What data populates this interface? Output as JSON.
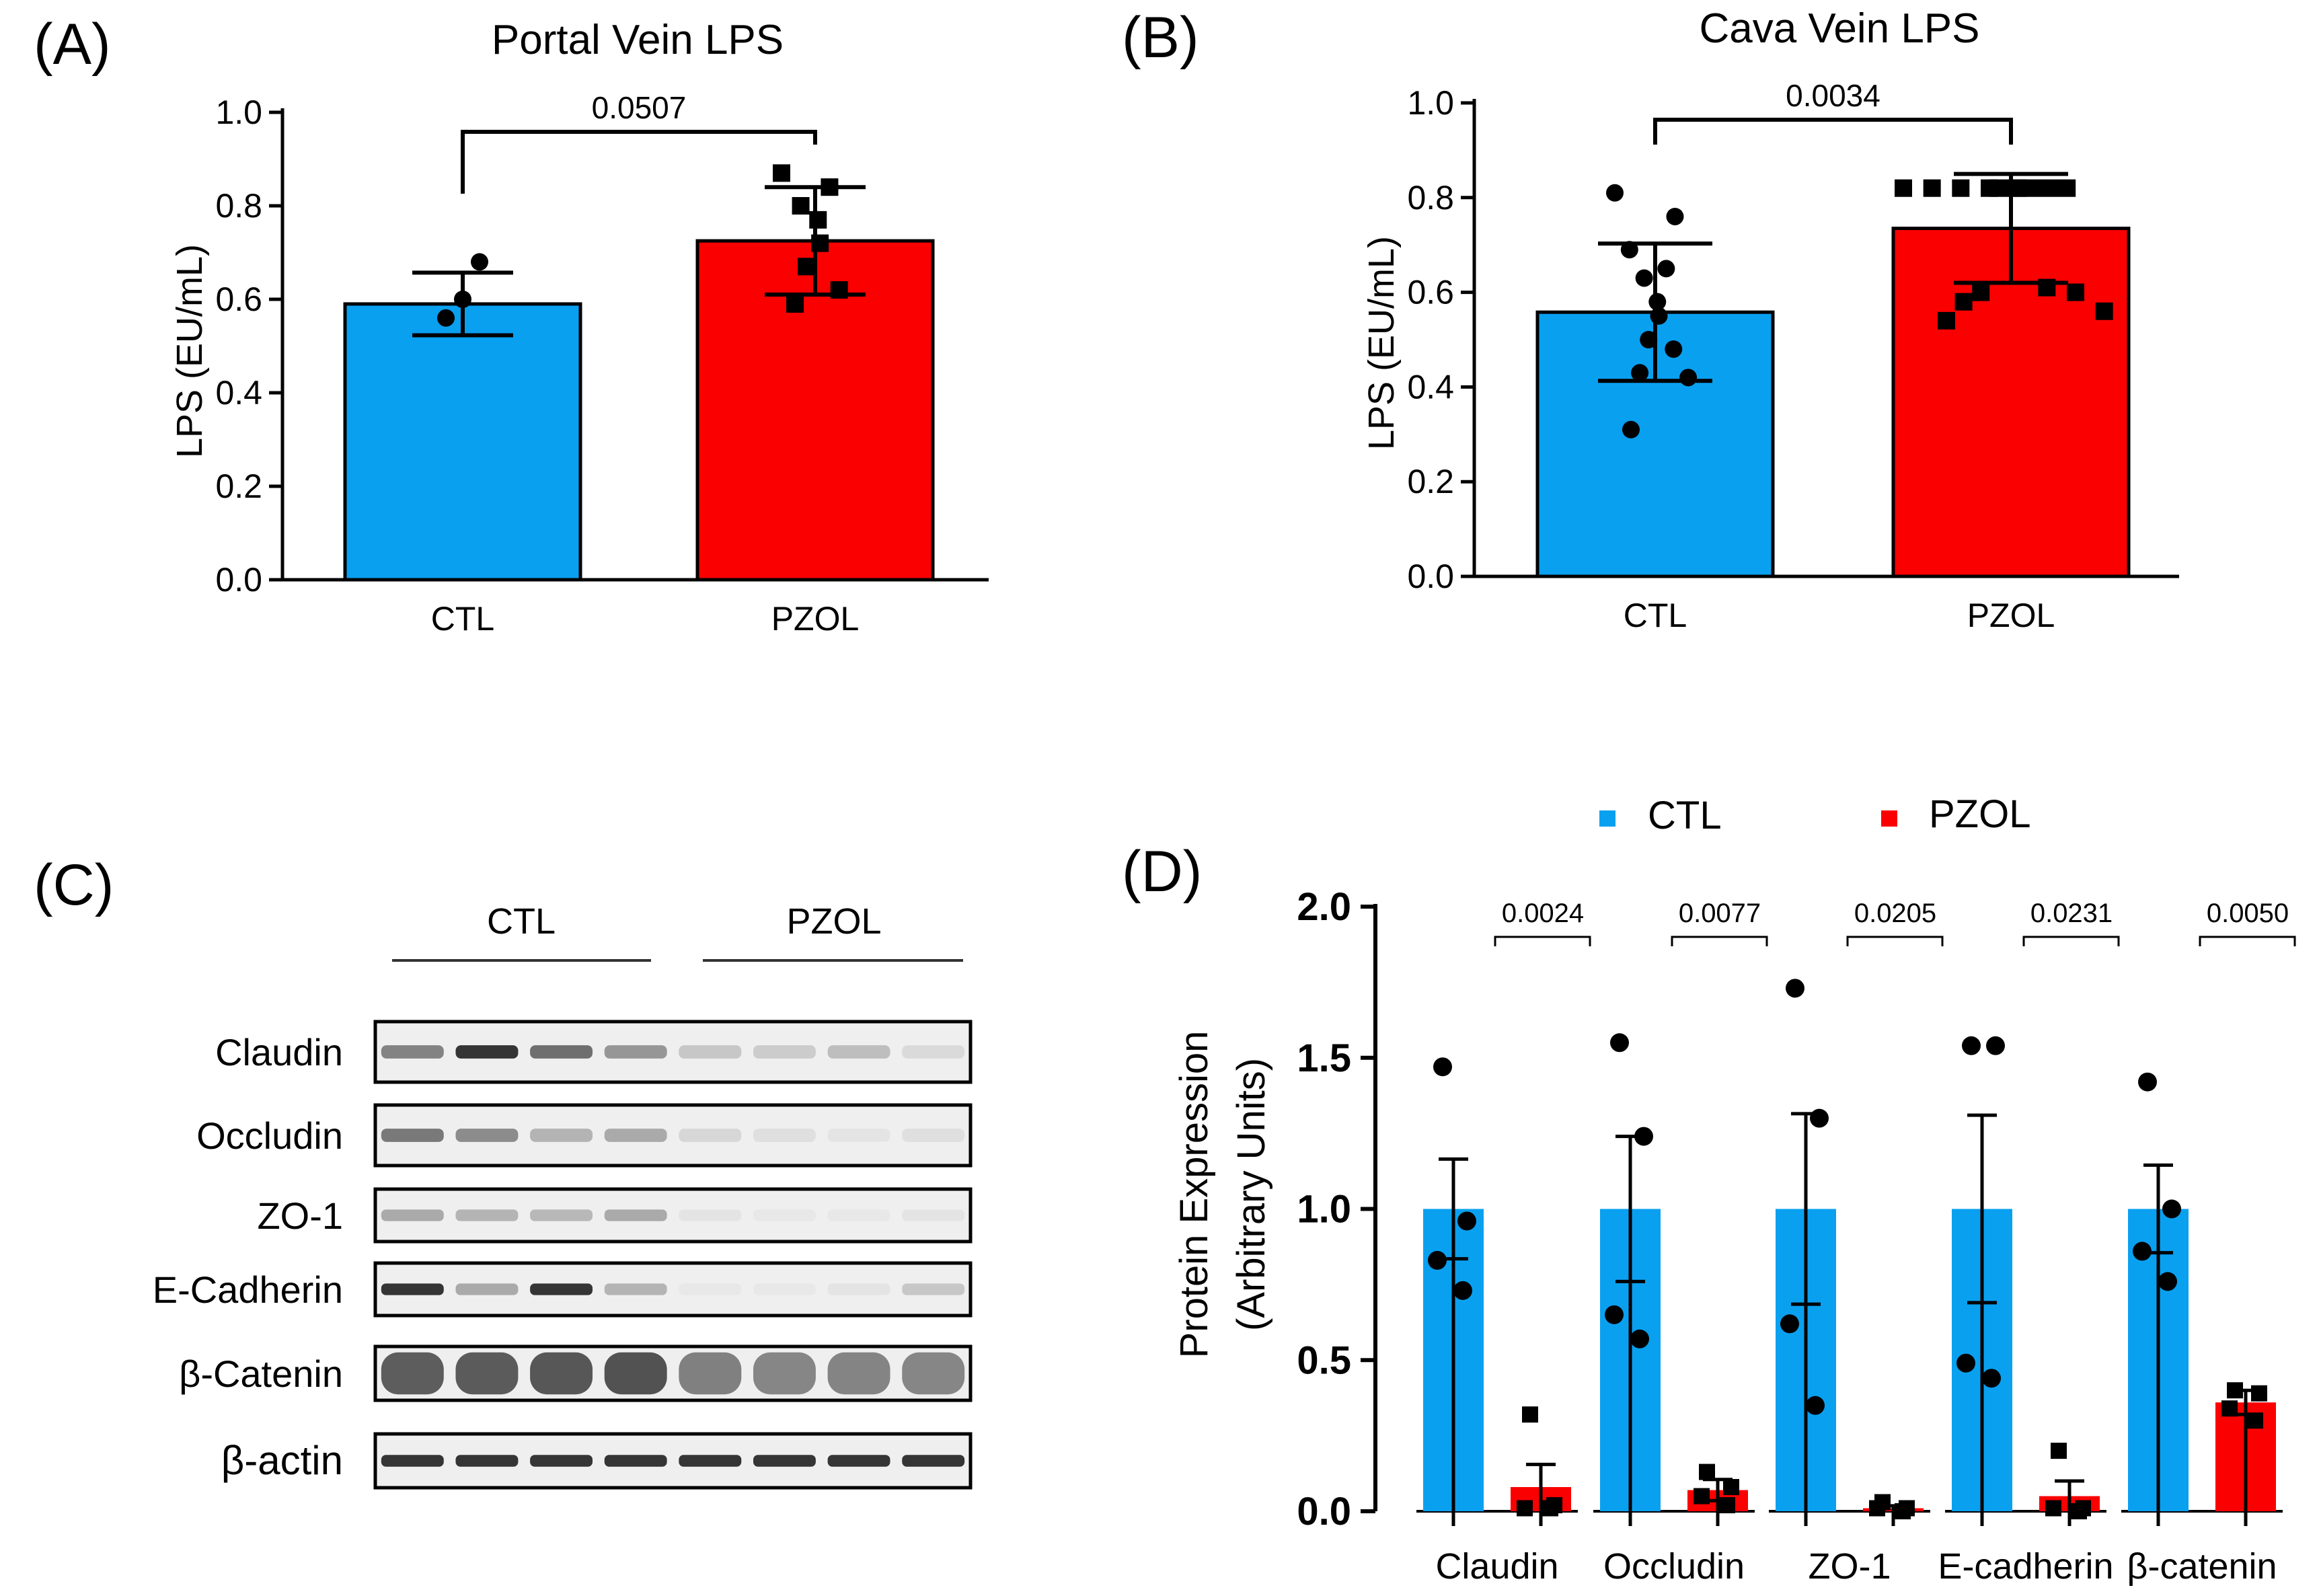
{
  "colors": {
    "ctl": "#0aa0f0",
    "pzol": "#fa0000",
    "axis": "#000000",
    "blot_bg": "#efefef",
    "band_dark": "#2a2a2a"
  },
  "chart_data": [
    {
      "panel": "(A)",
      "type": "bar",
      "title": "Portal Vein LPS",
      "ylabel": "LPS (EU/mL)",
      "xlabel": "",
      "ylim": [
        0,
        1.0
      ],
      "yticks": [
        "0.0",
        "0.2",
        "0.4",
        "0.6",
        "0.8",
        "1.0"
      ],
      "categories": [
        "CTL",
        "PZOL"
      ],
      "values": [
        0.59,
        0.725
      ],
      "errors": [
        0.067,
        0.115
      ],
      "points": [
        [
          0.56,
          0.6,
          0.68
        ],
        [
          0.87,
          0.84,
          0.8,
          0.77,
          0.72,
          0.67,
          0.62,
          0.59
        ]
      ],
      "p_value": "0.0507"
    },
    {
      "panel": "(B)",
      "type": "bar",
      "title": "Cava Vein LPS",
      "ylabel": "LPS (EU/mL)",
      "xlabel": "",
      "ylim": [
        0,
        1.0
      ],
      "yticks": [
        "0.0",
        "0.2",
        "0.4",
        "0.6",
        "0.8",
        "1.0"
      ],
      "categories": [
        "CTL",
        "PZOL"
      ],
      "values": [
        0.558,
        0.735
      ],
      "errors": [
        0.145,
        0.115
      ],
      "points": [
        [
          0.81,
          0.76,
          0.69,
          0.65,
          0.63,
          0.58,
          0.55,
          0.5,
          0.48,
          0.43,
          0.42,
          0.31
        ],
        [
          0.82,
          0.82,
          0.82,
          0.82,
          0.82,
          0.82,
          0.82,
          0.82,
          0.82,
          0.82,
          0.61,
          0.6,
          0.6,
          0.58,
          0.56,
          0.54
        ]
      ],
      "p_value": "0.0034"
    },
    {
      "panel": "(D)",
      "type": "bar",
      "title": "",
      "ylabel": "Protein Expression",
      "ylabel2": "(Arbitrary Units)",
      "xlabel": "",
      "ylim": [
        0,
        2.0
      ],
      "yticks": [
        "0.0",
        "0.5",
        "1.0",
        "1.5",
        "2.0"
      ],
      "legend": [
        "CTL",
        "PZOL"
      ],
      "legend_position": "top",
      "categories": [
        "Claudin",
        "Occludin",
        "ZO-1",
        "E-cadherin",
        "β-catenin"
      ],
      "series": [
        {
          "name": "CTL",
          "values": [
            1.0,
            1.0,
            1.0,
            1.0,
            1.0
          ],
          "errors": [
            0.165,
            0.24,
            0.315,
            0.31,
            0.145
          ],
          "points": [
            [
              1.47,
              0.96,
              0.83,
              0.73
            ],
            [
              1.55,
              1.24,
              0.65,
              0.57
            ],
            [
              1.73,
              1.3,
              0.62,
              0.35
            ],
            [
              1.54,
              1.54,
              0.49,
              0.44
            ],
            [
              1.42,
              1.0,
              0.86,
              0.76
            ]
          ]
        },
        {
          "name": "PZOL",
          "values": [
            0.08,
            0.07,
            0.01,
            0.05,
            0.36
          ],
          "errors": [
            0.075,
            0.035,
            0.008,
            0.05,
            0.04
          ],
          "points": [
            [
              0.32,
              0.02,
              0.01,
              0.01
            ],
            [
              0.13,
              0.08,
              0.05,
              0.02
            ],
            [
              0.03,
              0.01,
              0.01,
              0.0
            ],
            [
              0.2,
              0.01,
              0.01,
              0.0
            ],
            [
              0.4,
              0.39,
              0.34,
              0.3
            ]
          ]
        }
      ],
      "p_values": [
        "0.0024",
        "0.0077",
        "0.0205",
        "0.0231",
        "0.0050"
      ]
    }
  ],
  "panel_a": {
    "label": "(A)"
  },
  "panel_b": {
    "label": "(B)"
  },
  "panel_c": {
    "label": "(C)",
    "group_ctl": "CTL",
    "group_pzol": "PZOL",
    "rows": [
      {
        "name": "Claudin",
        "intensity": [
          0.55,
          0.95,
          0.65,
          0.45,
          0.2,
          0.18,
          0.25,
          0.1
        ]
      },
      {
        "name": "Occludin",
        "intensity": [
          0.6,
          0.5,
          0.3,
          0.35,
          0.12,
          0.08,
          0.05,
          0.08
        ]
      },
      {
        "name": "ZO-1",
        "intensity": [
          0.35,
          0.3,
          0.28,
          0.35,
          0.05,
          0.03,
          0.03,
          0.05
        ]
      },
      {
        "name": "E-Cadherin",
        "intensity": [
          0.95,
          0.35,
          0.95,
          0.3,
          0.03,
          0.03,
          0.05,
          0.2
        ]
      },
      {
        "name": "β-Catenin",
        "intensity": [
          0.7,
          0.72,
          0.75,
          0.78,
          0.45,
          0.4,
          0.42,
          0.4
        ]
      },
      {
        "name": "β-actin",
        "intensity": [
          0.95,
          0.95,
          0.95,
          0.95,
          0.95,
          0.95,
          0.95,
          0.95
        ]
      }
    ]
  },
  "panel_d": {
    "label": "(D)"
  }
}
